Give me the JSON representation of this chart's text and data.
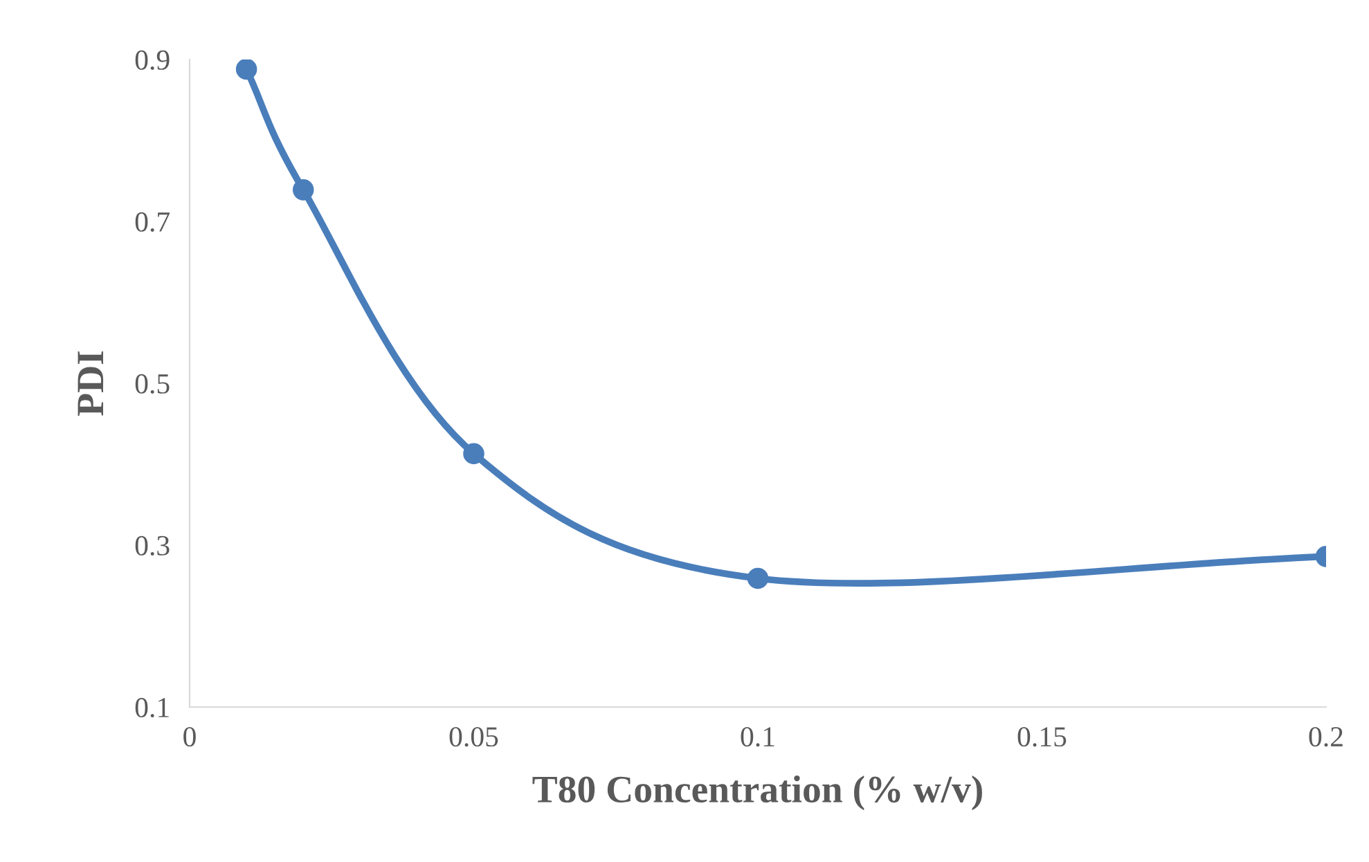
{
  "chart_data": {
    "type": "line",
    "xlabel": "T80 Concentration (% w/v)",
    "ylabel": "PDI",
    "x": [
      0.01,
      0.02,
      0.05,
      0.1,
      0.2
    ],
    "series": [
      {
        "color": "#4a7ebb",
        "values": [
          0.888,
          0.739,
          0.413,
          0.259,
          0.286
        ]
      }
    ],
    "xlim": [
      0,
      0.2
    ],
    "xticks": [
      0,
      0.05,
      0.1,
      0.15,
      0.2
    ],
    "ylim": [
      0.1,
      0.9
    ],
    "yticks": [
      0.1,
      0.3,
      0.5,
      0.7,
      0.9
    ],
    "grid": false,
    "legend": false,
    "marker": "circle",
    "line_style": "solid"
  }
}
